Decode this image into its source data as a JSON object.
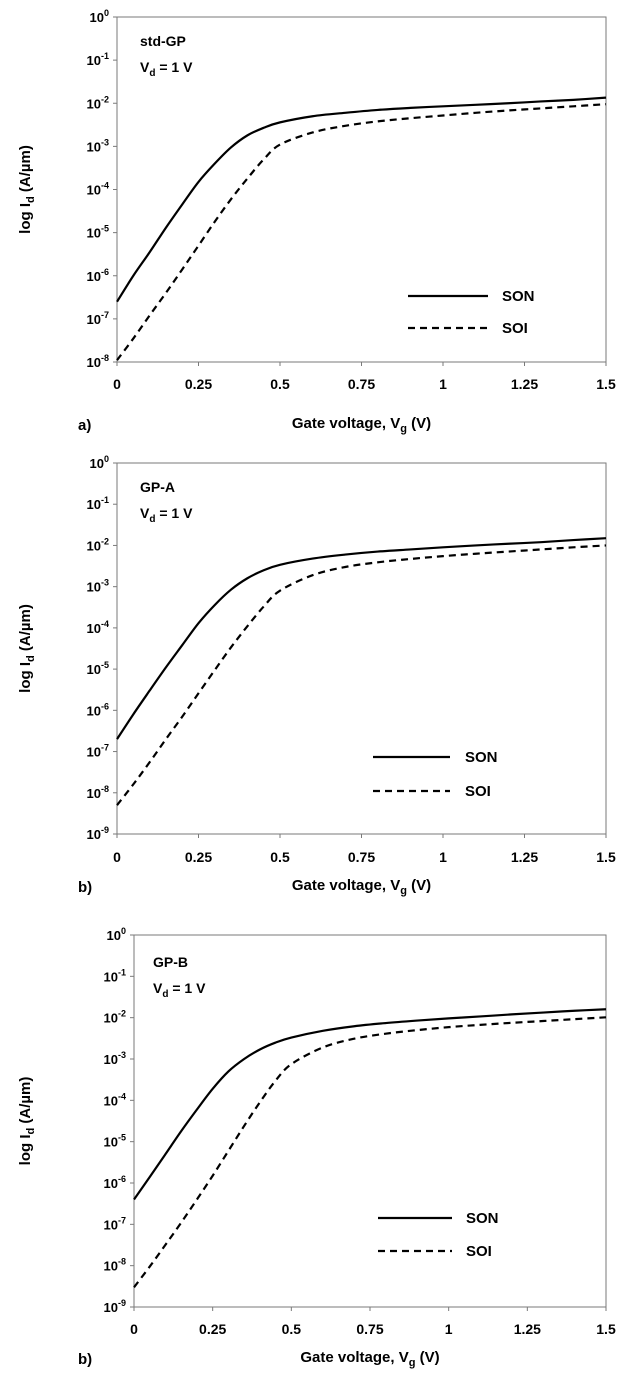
{
  "chart_data": [
    {
      "type": "line",
      "panel_label": "a)",
      "annotation": {
        "device": "std-GP",
        "vd_base": "V",
        "vd_sub": "d",
        "vd_rest": " = 1 V"
      },
      "xlabel": {
        "base": "Gate voltage, V",
        "sub": "g",
        "rest": " (V)"
      },
      "ylabel": {
        "base": "log I",
        "sub": "d",
        "rest": " (A/µm)"
      },
      "xlim": [
        0,
        1.5
      ],
      "ylim_exp": [
        -8,
        0
      ],
      "y_scale": "log",
      "x_ticks": [
        "0",
        "0.25",
        "0.5",
        "0.75",
        "1",
        "1.25",
        "1.5"
      ],
      "y_ticks": [
        {
          "exp": 0,
          "label": "10",
          "sup": "0"
        },
        {
          "exp": -1,
          "label": "10",
          "sup": "-1"
        },
        {
          "exp": -2,
          "label": "10",
          "sup": "-2"
        },
        {
          "exp": -3,
          "label": "10",
          "sup": "-3"
        },
        {
          "exp": -4,
          "label": "10",
          "sup": "-4"
        },
        {
          "exp": -5,
          "label": "10",
          "sup": "-5"
        },
        {
          "exp": -6,
          "label": "10",
          "sup": "-6"
        },
        {
          "exp": -7,
          "label": "10",
          "sup": "-7"
        },
        {
          "exp": -8,
          "label": "10",
          "sup": "-8"
        }
      ],
      "legend_position": "lower-right",
      "grid": false,
      "x": [
        0,
        0.05,
        0.1,
        0.15,
        0.2,
        0.25,
        0.3,
        0.35,
        0.4,
        0.45,
        0.5,
        0.6,
        0.7,
        0.8,
        0.9,
        1.0,
        1.1,
        1.2,
        1.3,
        1.4,
        1.5
      ],
      "series": [
        {
          "name": "SON",
          "style": "solid",
          "values": [
            2.5e-07,
            1e-06,
            3.5e-06,
            1.3e-05,
            4.5e-05,
            0.00015,
            0.0004,
            0.00095,
            0.0018,
            0.0027,
            0.0036,
            0.005,
            0.006,
            0.007,
            0.0078,
            0.0085,
            0.0092,
            0.01,
            0.011,
            0.012,
            0.0135
          ]
        },
        {
          "name": "SOI",
          "style": "dashed",
          "values": [
            1.1e-08,
            3.5e-08,
            1.2e-07,
            4e-07,
            1.4e-06,
            5e-06,
            1.8e-05,
            6e-05,
            0.00018,
            0.0005,
            0.0011,
            0.0021,
            0.003,
            0.0038,
            0.0045,
            0.0052,
            0.006,
            0.0068,
            0.0076,
            0.0085,
            0.0095
          ]
        }
      ]
    },
    {
      "type": "line",
      "panel_label": "b)",
      "annotation": {
        "device": "GP-A",
        "vd_base": "V",
        "vd_sub": "d",
        "vd_rest": " = 1 V"
      },
      "xlabel": {
        "base": "Gate voltage, V",
        "sub": "g",
        "rest": " (V)"
      },
      "ylabel": {
        "base": "log I",
        "sub": "d",
        "rest": " (A/µm)"
      },
      "xlim": [
        0,
        1.5
      ],
      "ylim_exp": [
        -9,
        0
      ],
      "y_scale": "log",
      "x_ticks": [
        "0",
        "0.25",
        "0.5",
        "0.75",
        "1",
        "1.25",
        "1.5"
      ],
      "y_ticks": [
        {
          "exp": 0,
          "label": "10",
          "sup": "0"
        },
        {
          "exp": -1,
          "label": "10",
          "sup": "-1"
        },
        {
          "exp": -2,
          "label": "10",
          "sup": "-2"
        },
        {
          "exp": -3,
          "label": "10",
          "sup": "-3"
        },
        {
          "exp": -4,
          "label": "10",
          "sup": "-4"
        },
        {
          "exp": -5,
          "label": "10",
          "sup": "-5"
        },
        {
          "exp": -6,
          "label": "10",
          "sup": "-6"
        },
        {
          "exp": -7,
          "label": "10",
          "sup": "-7"
        },
        {
          "exp": -8,
          "label": "10",
          "sup": "-8"
        },
        {
          "exp": -9,
          "label": "10",
          "sup": "-9"
        }
      ],
      "legend_position": "lower-right",
      "grid": false,
      "x": [
        0,
        0.05,
        0.1,
        0.15,
        0.2,
        0.25,
        0.3,
        0.35,
        0.4,
        0.45,
        0.5,
        0.6,
        0.7,
        0.8,
        0.9,
        1.0,
        1.1,
        1.2,
        1.3,
        1.4,
        1.5
      ],
      "series": [
        {
          "name": "SON",
          "style": "solid",
          "values": [
            2e-07,
            8e-07,
            3e-06,
            1.1e-05,
            3.8e-05,
            0.00013,
            0.00036,
            0.00085,
            0.0016,
            0.0025,
            0.0034,
            0.0048,
            0.006,
            0.0071,
            0.008,
            0.009,
            0.01,
            0.011,
            0.012,
            0.0135,
            0.015
          ]
        },
        {
          "name": "SOI",
          "style": "dashed",
          "values": [
            5e-09,
            1.6e-08,
            5.5e-08,
            2e-07,
            7e-07,
            2.6e-06,
            9.5e-06,
            3.4e-05,
            0.00011,
            0.00033,
            0.0008,
            0.0019,
            0.003,
            0.0039,
            0.0047,
            0.0055,
            0.0063,
            0.0071,
            0.008,
            0.009,
            0.01
          ]
        }
      ]
    },
    {
      "type": "line",
      "panel_label": "b)",
      "annotation": {
        "device": "GP-B",
        "vd_base": "V",
        "vd_sub": "d",
        "vd_rest": " = 1 V"
      },
      "xlabel": {
        "base": "Gate voltage, V",
        "sub": "g",
        "rest": " (V)"
      },
      "ylabel": {
        "base": "log I",
        "sub": "d",
        "rest": " (A/µm)"
      },
      "xlim": [
        0,
        1.5
      ],
      "ylim_exp": [
        -9,
        0
      ],
      "y_scale": "log",
      "x_ticks": [
        "0",
        "0.25",
        "0.5",
        "0.75",
        "1",
        "1.25",
        "1.5"
      ],
      "y_ticks": [
        {
          "exp": 0,
          "label": "10",
          "sup": "0"
        },
        {
          "exp": -1,
          "label": "10",
          "sup": "-1"
        },
        {
          "exp": -2,
          "label": "10",
          "sup": "-2"
        },
        {
          "exp": -3,
          "label": "10",
          "sup": "-3"
        },
        {
          "exp": -4,
          "label": "10",
          "sup": "-4"
        },
        {
          "exp": -5,
          "label": "10",
          "sup": "-5"
        },
        {
          "exp": -6,
          "label": "10",
          "sup": "-6"
        },
        {
          "exp": -7,
          "label": "10",
          "sup": "-7"
        },
        {
          "exp": -8,
          "label": "10",
          "sup": "-8"
        },
        {
          "exp": -9,
          "label": "10",
          "sup": "-9"
        }
      ],
      "legend_position": "lower-right",
      "grid": false,
      "x": [
        0,
        0.05,
        0.1,
        0.15,
        0.2,
        0.25,
        0.3,
        0.35,
        0.4,
        0.45,
        0.5,
        0.6,
        0.7,
        0.8,
        0.9,
        1.0,
        1.1,
        1.2,
        1.3,
        1.4,
        1.5
      ],
      "series": [
        {
          "name": "SON",
          "style": "solid",
          "values": [
            4e-07,
            1.4e-06,
            5e-06,
            1.8e-05,
            6e-05,
            0.00019,
            0.0005,
            0.001,
            0.0017,
            0.0025,
            0.0033,
            0.0048,
            0.0062,
            0.0074,
            0.0085,
            0.0096,
            0.0107,
            0.012,
            0.0133,
            0.0147,
            0.016
          ]
        },
        {
          "name": "SOI",
          "style": "dashed",
          "values": [
            3e-09,
            9.5e-09,
            3.2e-08,
            1.1e-07,
            4e-07,
            1.5e-06,
            6e-06,
            2.4e-05,
            9e-05,
            0.0003,
            0.00075,
            0.0019,
            0.0031,
            0.0041,
            0.005,
            0.0059,
            0.0067,
            0.0075,
            0.0083,
            0.0092,
            0.0102
          ]
        }
      ]
    }
  ]
}
